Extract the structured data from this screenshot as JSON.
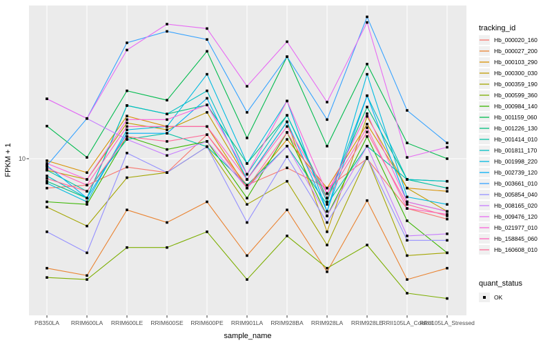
{
  "titles": {
    "x_axis_title": "sample_name",
    "y_axis_title": "FPKM + 1",
    "y_tick_label": "10",
    "legend_title": "tracking_id",
    "quant_legend_title": "quant_status",
    "quant_legend_item": "OK"
  },
  "colors": {
    "page_bg": "#FFFFFF",
    "panel_bg": "#EBEBEB",
    "grid": "#FFFFFF",
    "marker": "#000000",
    "axis_text": "#4D4D4D",
    "axis_title": "#000000",
    "tick_mark": "#333333",
    "legend_key_bg": "#F0F0F0"
  },
  "chart_data": {
    "type": "line",
    "title": "",
    "xlabel": "sample_name",
    "ylabel": "FPKM + 1",
    "y_scale": "log10",
    "ylim": [
      0.93,
      102
    ],
    "y_ticks": [
      10
    ],
    "grid": "major-white-on-gray",
    "legend_position": "right",
    "point_marker": "black-square",
    "quant_status": {
      "title": "quant_status",
      "values": [
        "OK"
      ]
    },
    "categories": [
      "PB350LA",
      "RRIM600LA",
      "RRIM600LE",
      "RRIM600SE",
      "RRIM600PE",
      "RRIM901LA",
      "RRIM928BA",
      "RRIM928LA",
      "RRIM928LE",
      "RRII105LA_Control",
      "RRII105LA_Stressed"
    ],
    "series": [
      {
        "name": "Hb_000020_160",
        "color": "#F8766D",
        "values": [
          6.4,
          6.7,
          8.8,
          8.1,
          14.4,
          6.7,
          8.7,
          6.4,
          10.0,
          4.7,
          4.0
        ]
      },
      {
        "name": "Hb_000027_200",
        "color": "#EA8331",
        "values": [
          1.9,
          1.7,
          4.6,
          3.8,
          5.2,
          2.3,
          4.6,
          1.8,
          5.3,
          1.6,
          1.9
        ]
      },
      {
        "name": "Hb_000103_290",
        "color": "#D89000",
        "values": [
          9.7,
          8.1,
          19.1,
          16.3,
          16.3,
          6.4,
          13.4,
          6.4,
          16.9,
          6.4,
          6.1
        ]
      },
      {
        "name": "Hb_000300_030",
        "color": "#C09B00",
        "values": [
          8.4,
          7.3,
          17.2,
          15.5,
          20.2,
          7.3,
          17.5,
          3.3,
          19.0,
          6.4,
          4.5
        ]
      },
      {
        "name": "Hb_000359_190",
        "color": "#A3A500",
        "values": [
          4.8,
          3.6,
          7.5,
          8.1,
          12.0,
          5.0,
          7.1,
          2.7,
          10.2,
          2.3,
          2.4
        ]
      },
      {
        "name": "Hb_000599_360",
        "color": "#7CAE00",
        "values": [
          1.65,
          1.6,
          2.6,
          2.6,
          3.3,
          1.6,
          3.1,
          1.9,
          2.7,
          1.3,
          1.2
        ]
      },
      {
        "name": "Hb_000984_140",
        "color": "#39B600",
        "values": [
          5.2,
          5.0,
          14.0,
          11.5,
          13.0,
          5.5,
          14.9,
          4.2,
          14.0,
          3.9,
          2.4
        ]
      },
      {
        "name": "Hb_001159_060",
        "color": "#00BB4E",
        "values": [
          16.4,
          10.2,
          28,
          24.3,
          51,
          13.7,
          47,
          12.1,
          42,
          12.7,
          10.0
        ]
      },
      {
        "name": "Hb_001226_130",
        "color": "#00BF7D",
        "values": [
          7.1,
          5.5,
          22.4,
          19.7,
          22.6,
          9.3,
          19.3,
          5.5,
          21.9,
          7.3,
          7.1
        ]
      },
      {
        "name": "Hb_001414_010",
        "color": "#00C1A3",
        "values": [
          8.4,
          6.1,
          13.4,
          14.7,
          12.0,
          6.7,
          12.1,
          5.0,
          12.1,
          7.3,
          6.4
        ]
      },
      {
        "name": "Hb_001811_170",
        "color": "#00BFC4",
        "values": [
          7.7,
          5.5,
          22.4,
          19.7,
          28,
          7.9,
          19.3,
          5.2,
          26,
          7.3,
          7.1
        ]
      },
      {
        "name": "Hb_001998_220",
        "color": "#00BAE0",
        "values": [
          6.9,
          5.2,
          15.5,
          16.3,
          36,
          9.3,
          24,
          4.5,
          36,
          5.6,
          5.0
        ]
      },
      {
        "name": "Hb_002739_120",
        "color": "#00B0F6",
        "values": [
          9.0,
          5.5,
          14.7,
          14.7,
          25,
          7.3,
          17.5,
          4.5,
          26,
          5.2,
          4.5
        ]
      },
      {
        "name": "Hb_003661_010",
        "color": "#35A2FF",
        "values": [
          9.0,
          18.4,
          58,
          69,
          61,
          20.2,
          47,
          18.1,
          86,
          20.8,
          12.7
        ]
      },
      {
        "name": "Hb_005854_040",
        "color": "#9590FF",
        "values": [
          3.3,
          2.4,
          10.9,
          8.1,
          12.0,
          3.8,
          10.3,
          3.8,
          10.2,
          2.9,
          2.9
        ]
      },
      {
        "name": "Hb_008165_020",
        "color": "#C77CFF",
        "values": [
          24.8,
          18.4,
          13.4,
          10.5,
          13.0,
          6.4,
          12.1,
          4.2,
          12.1,
          3.1,
          3.2
        ]
      },
      {
        "name": "Hb_009476_120",
        "color": "#E76BF3",
        "values": [
          24.8,
          18.4,
          52,
          77,
          72,
          30,
          59,
          23.6,
          79,
          10.2,
          11.9
        ]
      },
      {
        "name": "Hb_021977_010",
        "color": "#FA62DB",
        "values": [
          9.3,
          7.3,
          18.1,
          18.1,
          22.6,
          7.9,
          24,
          5.9,
          19.8,
          5.2,
          4.5
        ]
      },
      {
        "name": "Hb_158845_060",
        "color": "#FF62BC",
        "values": [
          8.7,
          6.7,
          16.3,
          16.3,
          16.3,
          7.3,
          16.3,
          5.9,
          16.0,
          4.7,
          4.3
        ]
      },
      {
        "name": "Hb_160608_010",
        "color": "#FF6A98",
        "values": [
          7.4,
          6.1,
          14.0,
          13.0,
          14.4,
          6.4,
          14.9,
          5.5,
          15.0,
          5.0,
          4.2
        ]
      }
    ]
  }
}
